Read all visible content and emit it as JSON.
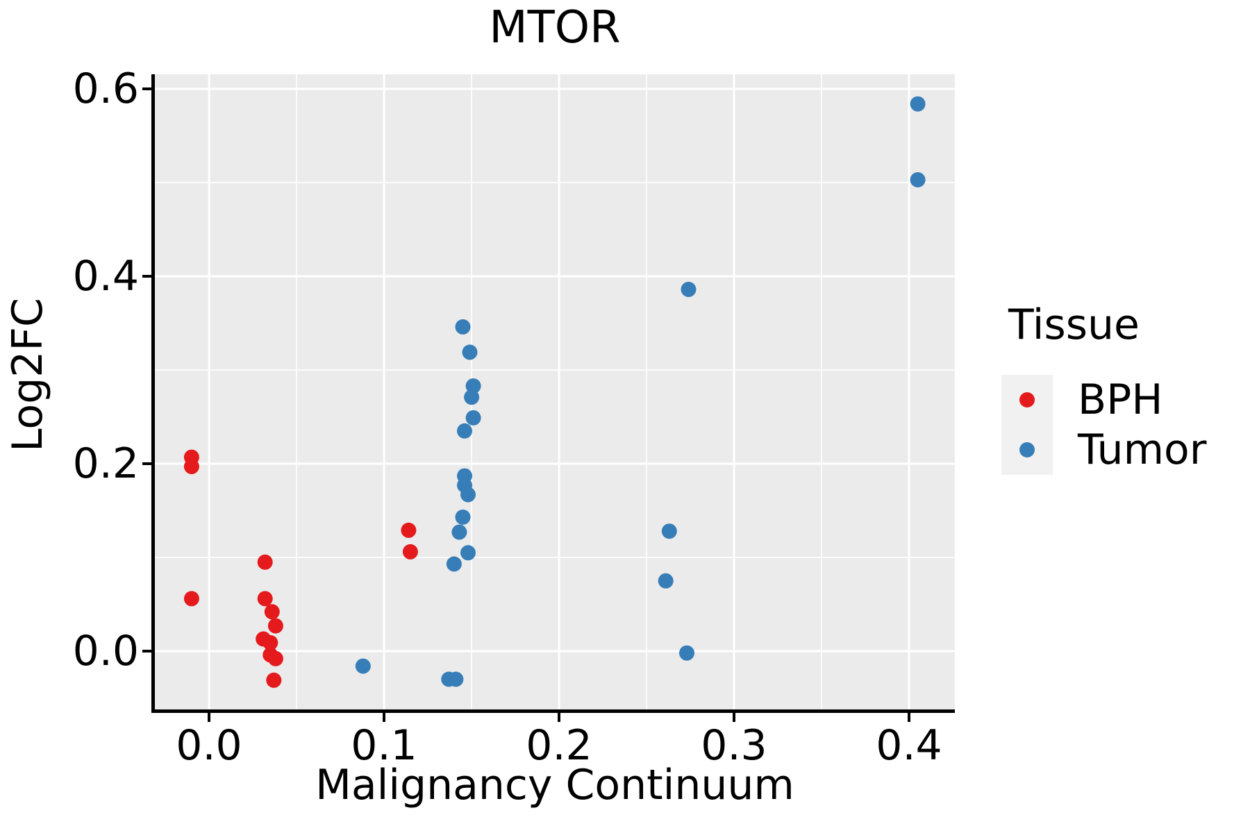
{
  "title": "MTOR",
  "axes": {
    "x": {
      "label": "Malignancy Continuum",
      "domain": [
        -0.031,
        0.4262
      ],
      "major_ticks": [
        0.0,
        0.1,
        0.2,
        0.3,
        0.4
      ],
      "tick_labels": [
        "0.0",
        "0.1",
        "0.2",
        "0.3",
        "0.4"
      ],
      "minor_ticks": [
        0.05,
        0.15,
        0.25,
        0.35
      ]
    },
    "y": {
      "label": "Log2FC",
      "domain": [
        -0.0622,
        0.6156
      ],
      "major_ticks": [
        0.0,
        0.2,
        0.4,
        0.6
      ],
      "tick_labels": [
        "0.0",
        "0.2",
        "0.4",
        "0.6"
      ],
      "minor_ticks": [
        0.1,
        0.3,
        0.5
      ]
    }
  },
  "legend": {
    "title": "Tissue",
    "entries": [
      {
        "label": "BPH",
        "color": "#E41A1C"
      },
      {
        "label": "Tumor",
        "color": "#377EB8"
      }
    ]
  },
  "style": {
    "panel_bg": "#EBEBEB",
    "grid_color": "#FFFFFF",
    "axis_color": "#000000",
    "text_color": "#000000",
    "legend_key_bg": "#F1F1F1",
    "point_radius": 11
  },
  "chart_data": {
    "type": "scatter",
    "title": "MTOR",
    "xlabel": "Malignancy Continuum",
    "ylabel": "Log2FC",
    "xlim": [
      -0.031,
      0.4262
    ],
    "ylim": [
      -0.0622,
      0.6156
    ],
    "grid": true,
    "legend_title": "Tissue",
    "legend_position": "right",
    "series": [
      {
        "name": "BPH",
        "color": "#E41A1C",
        "points": [
          [
            -0.01,
            0.207
          ],
          [
            -0.01,
            0.197
          ],
          [
            -0.01,
            0.056
          ],
          [
            0.032,
            0.095
          ],
          [
            0.032,
            0.056
          ],
          [
            0.036,
            0.042
          ],
          [
            0.038,
            0.027
          ],
          [
            0.031,
            0.013
          ],
          [
            0.035,
            0.009
          ],
          [
            0.035,
            -0.004
          ],
          [
            0.038,
            -0.008
          ],
          [
            0.037,
            -0.031
          ],
          [
            0.114,
            0.129
          ],
          [
            0.115,
            0.106
          ]
        ]
      },
      {
        "name": "Tumor",
        "color": "#377EB8",
        "points": [
          [
            0.088,
            -0.016
          ],
          [
            0.145,
            0.346
          ],
          [
            0.149,
            0.319
          ],
          [
            0.151,
            0.283
          ],
          [
            0.15,
            0.271
          ],
          [
            0.151,
            0.249
          ],
          [
            0.146,
            0.235
          ],
          [
            0.146,
            0.187
          ],
          [
            0.146,
            0.177
          ],
          [
            0.148,
            0.167
          ],
          [
            0.145,
            0.143
          ],
          [
            0.143,
            0.127
          ],
          [
            0.148,
            0.105
          ],
          [
            0.14,
            0.093
          ],
          [
            0.137,
            -0.03
          ],
          [
            0.141,
            -0.03
          ],
          [
            0.274,
            0.386
          ],
          [
            0.263,
            0.128
          ],
          [
            0.261,
            0.075
          ],
          [
            0.273,
            -0.002
          ],
          [
            0.405,
            0.584
          ],
          [
            0.405,
            0.503
          ]
        ]
      }
    ]
  }
}
